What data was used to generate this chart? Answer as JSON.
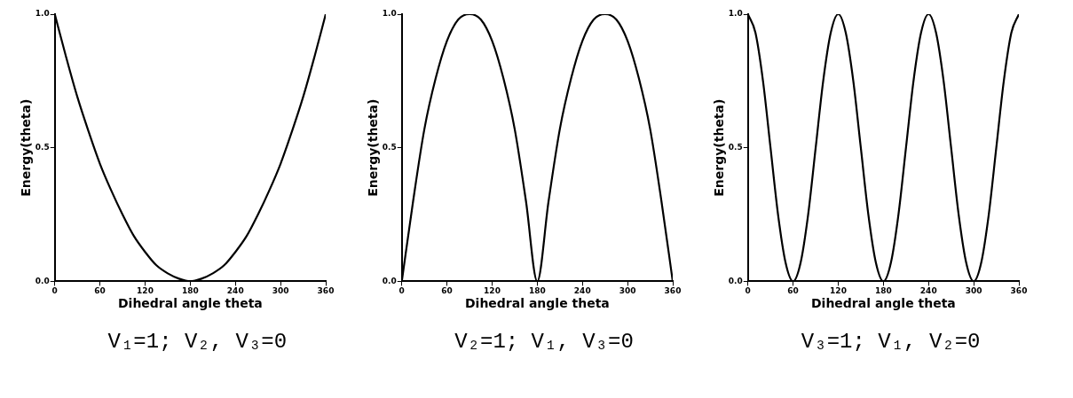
{
  "chart_data": [
    {
      "type": "line",
      "xlabel": "Dihedral angle theta",
      "ylabel": "Energy(theta)",
      "annotations": [
        "V₁=1; V₂, V₃=0"
      ],
      "color": "#000000",
      "marker": "none",
      "line_style": "solid",
      "grid": false,
      "legend": false,
      "xlim": [
        0,
        360
      ],
      "ylim": [
        0,
        1
      ],
      "xticks": [
        0,
        60,
        120,
        180,
        240,
        300,
        360
      ],
      "yticks": [
        {
          "value": 0,
          "label": "0.0"
        },
        {
          "value": 0.5,
          "label": "0.5"
        },
        {
          "value": 1,
          "label": "1.0"
        }
      ],
      "x": [
        0,
        15,
        30,
        45,
        60,
        75,
        90,
        105,
        120,
        135,
        150,
        165,
        180,
        195,
        210,
        225,
        240,
        255,
        270,
        285,
        300,
        315,
        330,
        345,
        360
      ],
      "values": [
        1,
        0.84,
        0.69,
        0.56,
        0.44,
        0.34,
        0.25,
        0.17,
        0.11,
        0.06,
        0.03,
        0.01,
        0,
        0.01,
        0.03,
        0.06,
        0.11,
        0.17,
        0.25,
        0.34,
        0.44,
        0.56,
        0.69,
        0.84,
        1
      ]
    },
    {
      "type": "line",
      "xlabel": "Dihedral angle theta",
      "ylabel": "Energy(theta)",
      "annotations": [
        "V₂=1; V₁, V₃=0"
      ],
      "color": "#000000",
      "marker": "none",
      "line_style": "solid",
      "grid": false,
      "legend": false,
      "xlim": [
        0,
        360
      ],
      "ylim": [
        0,
        1
      ],
      "xticks": [
        0,
        60,
        120,
        180,
        240,
        300,
        360
      ],
      "yticks": [
        {
          "value": 0,
          "label": "0.0"
        },
        {
          "value": 0.5,
          "label": "0.5"
        },
        {
          "value": 1,
          "label": "1.0"
        }
      ],
      "x": [
        0,
        15,
        30,
        45,
        60,
        75,
        90,
        105,
        120,
        135,
        150,
        165,
        180,
        195,
        210,
        225,
        240,
        255,
        270,
        285,
        300,
        315,
        330,
        345,
        360
      ],
      "values": [
        0,
        0.3,
        0.57,
        0.76,
        0.9,
        0.98,
        1,
        0.98,
        0.9,
        0.76,
        0.57,
        0.3,
        0,
        0.3,
        0.57,
        0.76,
        0.9,
        0.98,
        1,
        0.98,
        0.9,
        0.76,
        0.57,
        0.3,
        0
      ]
    },
    {
      "type": "line",
      "xlabel": "Dihedral angle theta",
      "ylabel": "Energy(theta)",
      "annotations": [
        "V₃=1; V₁, V₂=0"
      ],
      "color": "#000000",
      "marker": "none",
      "line_style": "solid",
      "grid": false,
      "legend": false,
      "xlim": [
        0,
        360
      ],
      "ylim": [
        0,
        1
      ],
      "xticks": [
        0,
        60,
        120,
        180,
        240,
        300,
        360
      ],
      "yticks": [
        {
          "value": 0,
          "label": "0.0"
        },
        {
          "value": 0.5,
          "label": "0.5"
        },
        {
          "value": 1,
          "label": "1.0"
        }
      ],
      "x": [
        0,
        10,
        20,
        30,
        40,
        50,
        60,
        70,
        80,
        90,
        100,
        110,
        120,
        130,
        140,
        150,
        160,
        170,
        180,
        190,
        200,
        210,
        220,
        230,
        240,
        250,
        260,
        270,
        280,
        290,
        300,
        310,
        320,
        330,
        340,
        350,
        360
      ],
      "values": [
        1,
        0.93,
        0.75,
        0.5,
        0.25,
        0.07,
        0,
        0.07,
        0.25,
        0.5,
        0.75,
        0.93,
        1,
        0.93,
        0.75,
        0.5,
        0.25,
        0.07,
        0,
        0.07,
        0.25,
        0.5,
        0.75,
        0.93,
        1,
        0.93,
        0.75,
        0.5,
        0.25,
        0.07,
        0,
        0.07,
        0.25,
        0.5,
        0.75,
        0.93,
        1
      ]
    }
  ]
}
